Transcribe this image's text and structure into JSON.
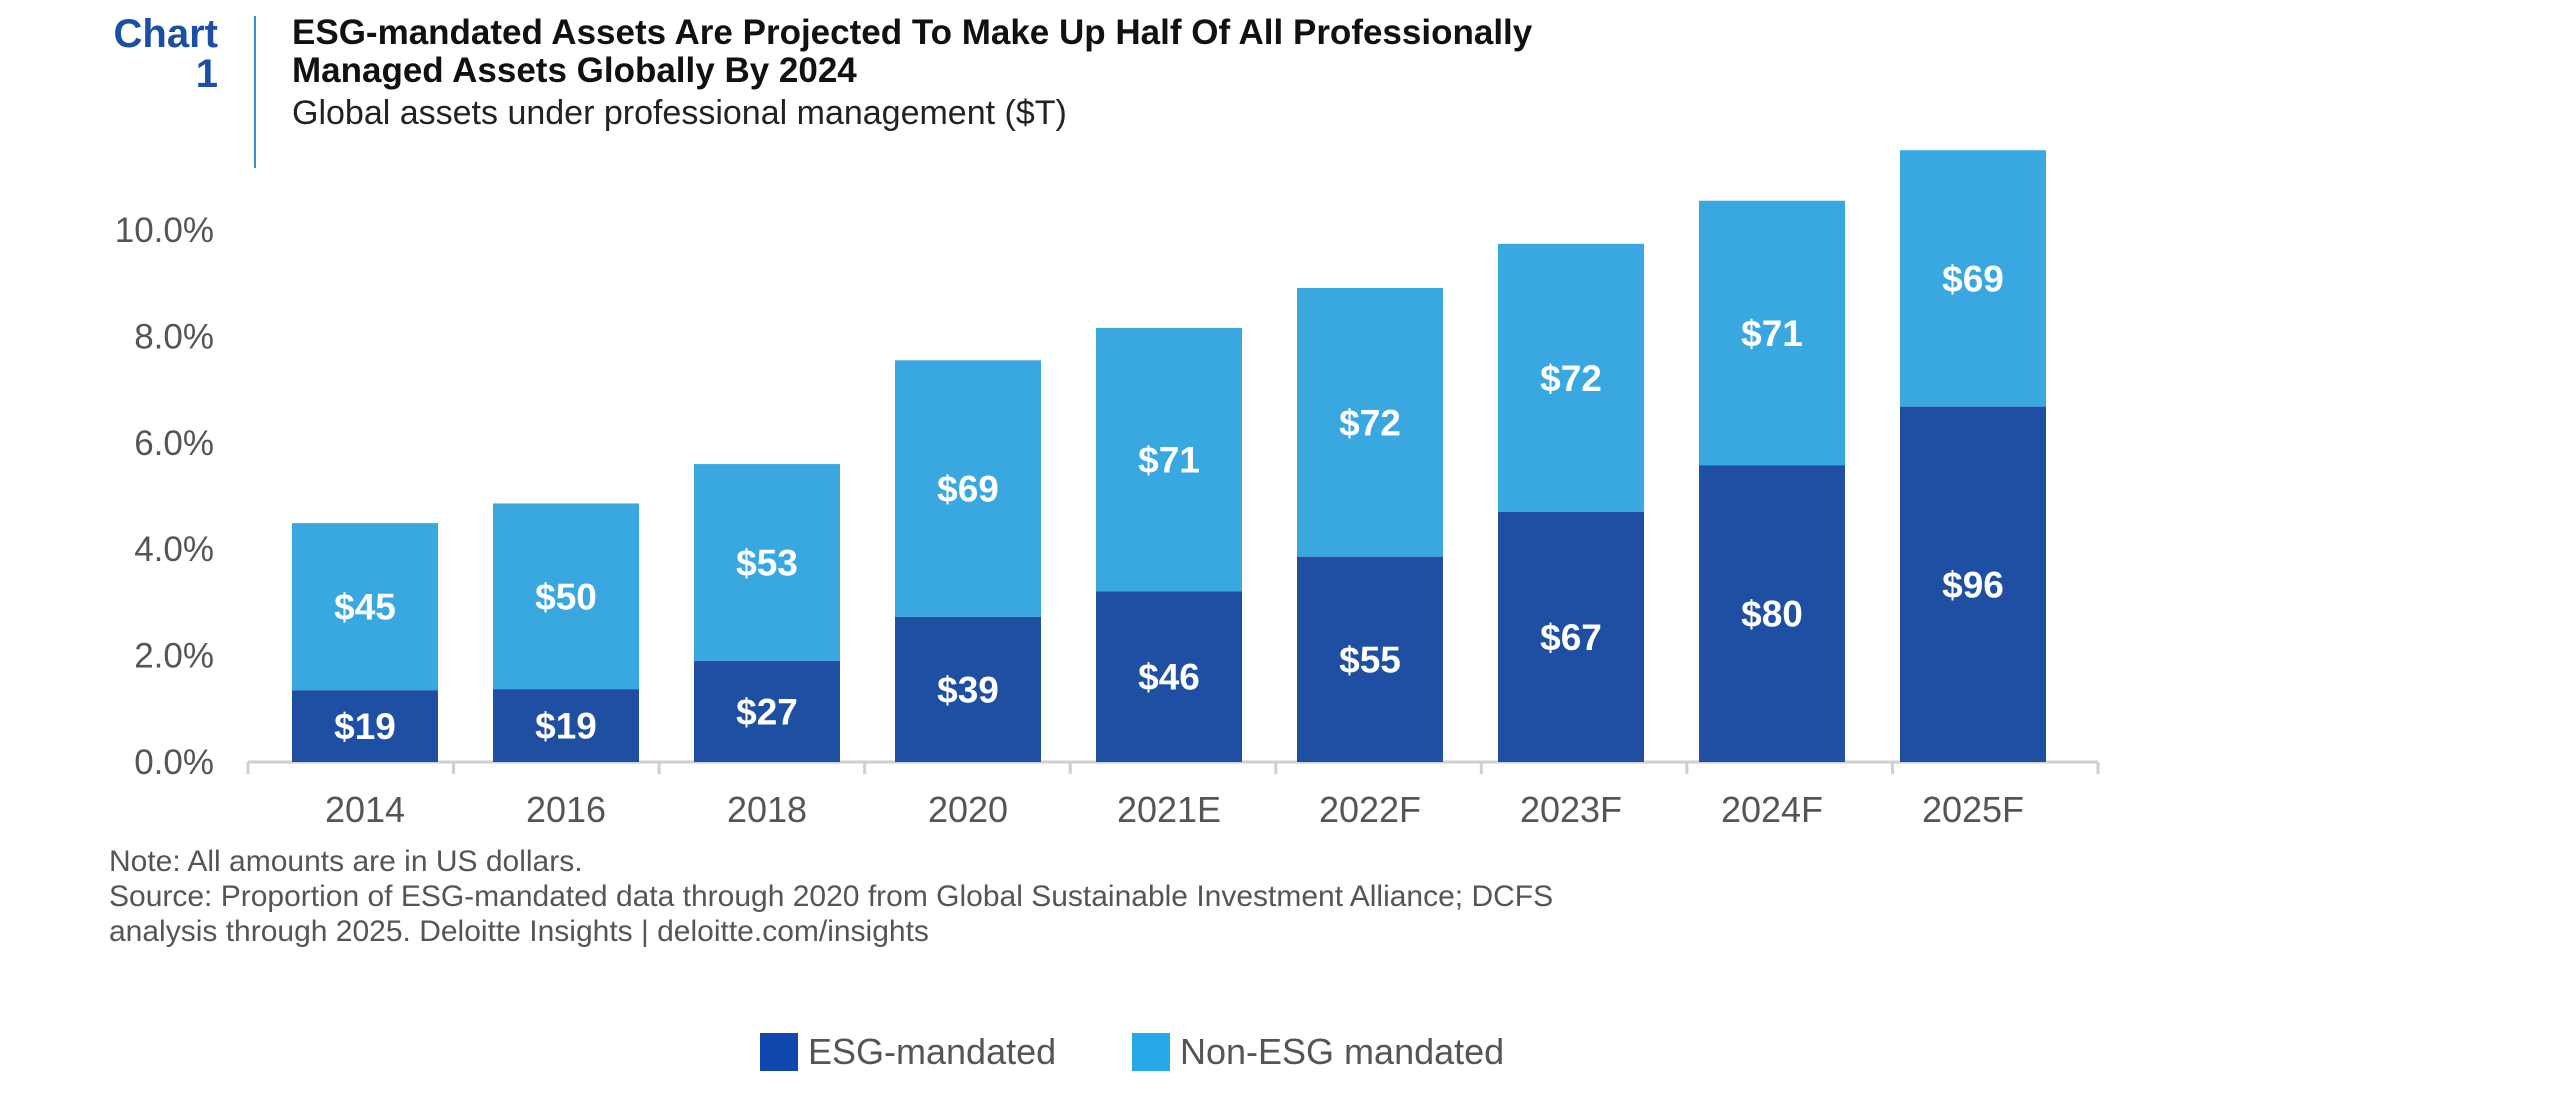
{
  "header": {
    "chart_label_line1": "Chart",
    "chart_label_line2": "1",
    "title_line1": "ESG-mandated Assets Are Projected To Make Up Half Of All Professionally",
    "title_line2": "Managed Assets Globally By 2024",
    "subtitle": "Global assets under professional management ($T)"
  },
  "chart_data": {
    "type": "bar",
    "stacked": true,
    "categories": [
      "2014",
      "2016",
      "2018",
      "2020",
      "2021E",
      "2022F",
      "2023F",
      "2024F",
      "2025F"
    ],
    "series": [
      {
        "name": "ESG-mandated",
        "color": "#1f4fa3",
        "values": [
          1.35,
          1.37,
          1.9,
          2.73,
          3.21,
          3.86,
          4.7,
          5.58,
          6.68
        ],
        "labels": [
          "$19",
          "$19",
          "$27",
          "$39",
          "$46",
          "$55",
          "$67",
          "$80",
          "$96"
        ]
      },
      {
        "name": "Non-ESG mandated",
        "color": "#3aa8e0",
        "values": [
          3.14,
          3.49,
          3.7,
          4.82,
          4.95,
          5.05,
          5.04,
          4.97,
          4.82
        ],
        "labels": [
          "$45",
          "$50",
          "$53",
          "$69",
          "$71",
          "$72",
          "$72",
          "$71",
          "$69"
        ]
      }
    ],
    "yticks": [
      "0.0%",
      "2.0%",
      "4.0%",
      "6.0%",
      "8.0%",
      "10.0%"
    ],
    "ylim": [
      0,
      11.5
    ],
    "xlabel": "",
    "ylabel": "",
    "grid": false,
    "legend_position": "bottom"
  },
  "notes": {
    "note": "Note: All amounts are in US dollars.",
    "source_line1": "Source: Proportion of ESG-mandated data through 2020 from Global Sustainable Investment Alliance; DCFS",
    "source_line2": "analysis through 2025. Deloitte Insights | deloitte.com/insights"
  },
  "legend": {
    "items": [
      {
        "label": "ESG-mandated",
        "color": "#1048b0"
      },
      {
        "label": "Non-ESG mandated",
        "color": "#27a6e8"
      }
    ]
  }
}
